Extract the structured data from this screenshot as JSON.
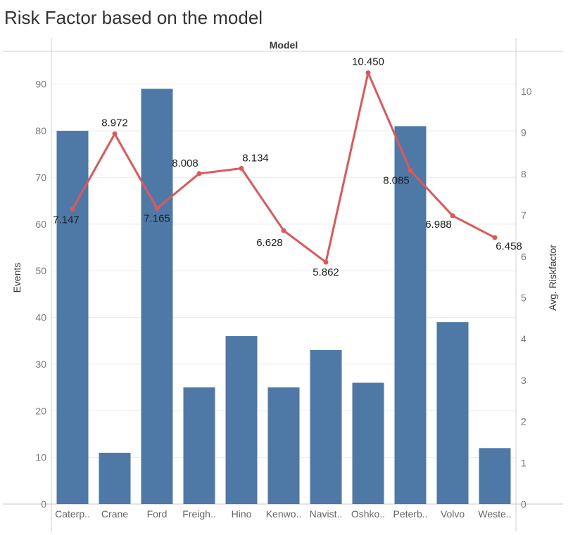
{
  "page": {
    "title": "Risk Factor based on the model"
  },
  "chart_data": {
    "type": "bar",
    "title": "Risk Factor based on the model",
    "header": "Model",
    "categories": [
      "Caterp..",
      "Crane",
      "Ford",
      "Freigh..",
      "Hino",
      "Kenwo..",
      "Navist..",
      "Oshko..",
      "Peterb..",
      "Volvo",
      "Weste.."
    ],
    "series": [
      {
        "name": "Events",
        "type": "bar",
        "axis": "left",
        "color": "#4e79a7",
        "values": [
          80,
          11,
          89,
          25,
          36,
          25,
          33,
          26,
          81,
          39,
          12
        ]
      },
      {
        "name": "Avg. Riskfactor",
        "type": "line",
        "axis": "right",
        "color": "#e05759",
        "values": [
          7.147,
          8.972,
          7.165,
          8.008,
          8.134,
          6.628,
          5.862,
          10.45,
          8.085,
          6.988,
          6.458
        ],
        "labels": [
          "7.147",
          "8.972",
          "7.165",
          "8.008",
          "8.134",
          "6.628",
          "5.862",
          "10.450",
          "8.085",
          "6.988",
          "6.458"
        ]
      }
    ],
    "y_left": {
      "label": "Events",
      "ticks": [
        0,
        10,
        20,
        30,
        40,
        50,
        60,
        70,
        80,
        90
      ]
    },
    "y_right": {
      "label": "Avg. Riskfactor",
      "ticks": [
        0,
        1,
        2,
        3,
        4,
        5,
        6,
        7,
        8,
        9,
        10
      ]
    },
    "grid": true
  }
}
